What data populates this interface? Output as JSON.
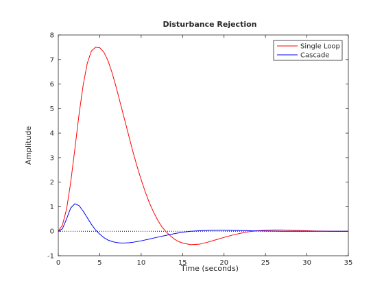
{
  "chart_data": {
    "type": "line",
    "title": "Disturbance Rejection",
    "xlabel": "Time (seconds)",
    "ylabel": "Amplitude",
    "xlim": [
      0,
      35
    ],
    "ylim": [
      -1,
      8
    ],
    "xticks": [
      0,
      5,
      10,
      15,
      20,
      25,
      30,
      35
    ],
    "yticks": [
      -1,
      0,
      1,
      2,
      3,
      4,
      5,
      6,
      7,
      8
    ],
    "grid": false,
    "legend_position": "top-right",
    "zero_line": {
      "y": 0,
      "style": "dotted",
      "color": "#000000"
    },
    "series": [
      {
        "name": "Single Loop",
        "color": "#ff0000",
        "x": [
          0,
          0.5,
          1,
          1.5,
          2,
          2.5,
          3,
          3.5,
          4,
          4.5,
          5,
          5.5,
          6,
          6.5,
          7,
          7.5,
          8,
          8.5,
          9,
          9.5,
          10,
          10.5,
          11,
          11.5,
          12,
          12.5,
          13,
          13.5,
          14,
          14.5,
          15,
          16,
          17,
          18,
          19,
          20,
          21,
          22,
          23,
          24,
          25,
          26,
          27,
          28,
          29,
          30,
          31,
          32,
          33,
          34,
          35
        ],
        "values": [
          0,
          0.25,
          0.9,
          2.0,
          3.35,
          4.75,
          5.95,
          6.85,
          7.35,
          7.5,
          7.48,
          7.3,
          6.95,
          6.45,
          5.85,
          5.2,
          4.55,
          3.9,
          3.25,
          2.65,
          2.1,
          1.6,
          1.15,
          0.78,
          0.45,
          0.18,
          -0.02,
          -0.18,
          -0.32,
          -0.42,
          -0.48,
          -0.55,
          -0.53,
          -0.45,
          -0.35,
          -0.25,
          -0.16,
          -0.08,
          -0.02,
          0.02,
          0.04,
          0.05,
          0.05,
          0.04,
          0.03,
          0.02,
          0.01,
          0.005,
          0.0,
          0.0,
          0.0
        ]
      },
      {
        "name": "Cascade",
        "color": "#0000ff",
        "x": [
          0,
          0.5,
          1,
          1.5,
          2,
          2.5,
          3,
          3.5,
          4,
          4.5,
          5,
          5.5,
          6,
          6.5,
          7,
          7.5,
          8,
          8.5,
          9,
          9.5,
          10,
          11,
          12,
          13,
          14,
          15,
          16,
          17,
          18,
          19,
          20,
          21,
          22,
          23,
          24,
          25,
          26,
          27,
          28,
          29,
          30,
          31,
          32,
          33,
          34,
          35
        ],
        "values": [
          0,
          0.1,
          0.5,
          0.95,
          1.12,
          1.05,
          0.82,
          0.55,
          0.28,
          0.05,
          -0.12,
          -0.26,
          -0.36,
          -0.42,
          -0.46,
          -0.48,
          -0.48,
          -0.47,
          -0.45,
          -0.42,
          -0.39,
          -0.32,
          -0.24,
          -0.17,
          -0.1,
          -0.04,
          0.0,
          0.02,
          0.035,
          0.04,
          0.04,
          0.035,
          0.03,
          0.02,
          0.015,
          0.01,
          0.005,
          0.0,
          0.0,
          0.0,
          0.0,
          0.0,
          0.0,
          0.0,
          0.0,
          0.0
        ]
      }
    ]
  }
}
